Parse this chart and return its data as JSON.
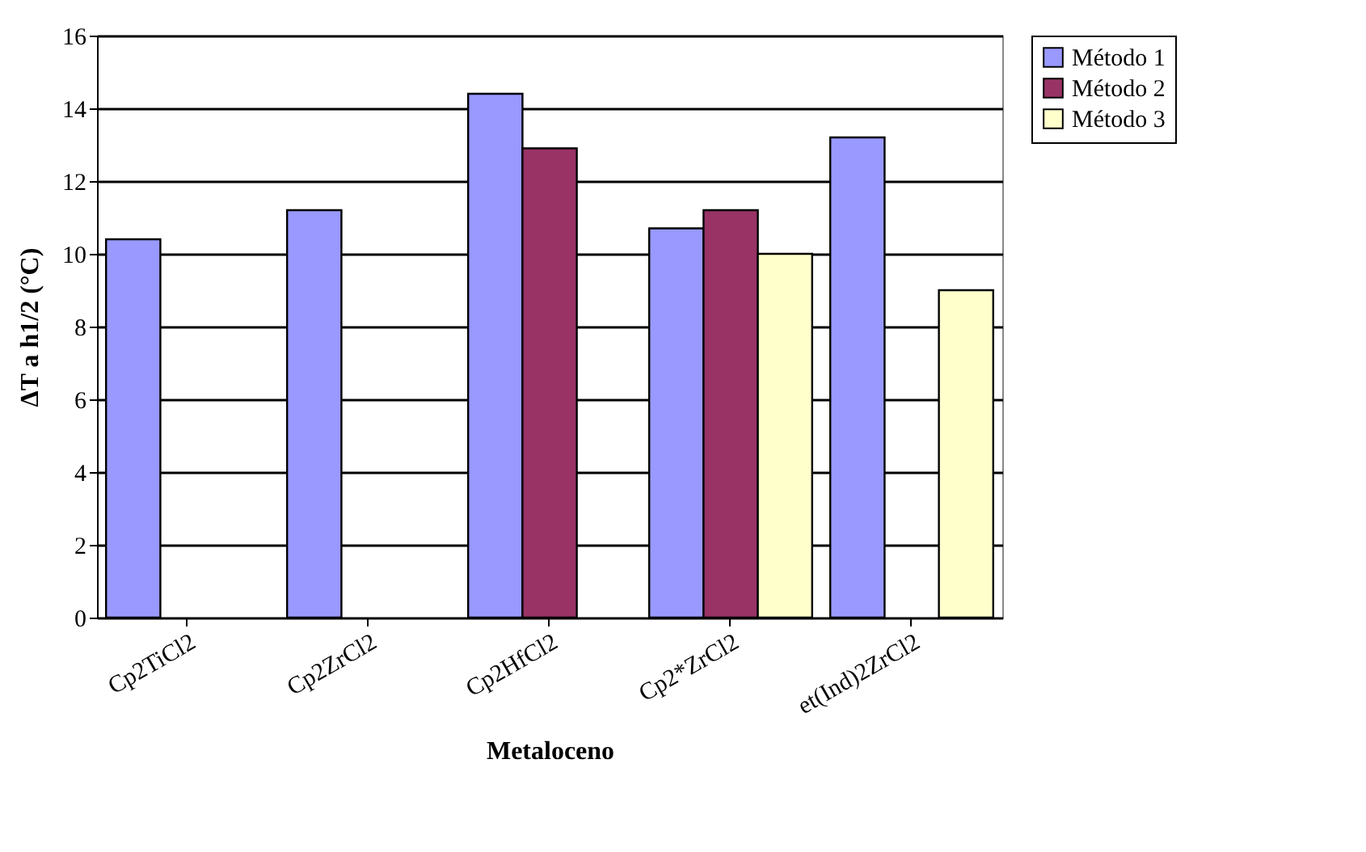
{
  "chart_data": {
    "type": "bar",
    "xlabel": "Metaloceno",
    "ylabel": "ΔT a h1/2 (°C)",
    "categories": [
      "Cp2TiCl2",
      "Cp2ZrCl2",
      "Cp2HfCl2",
      "Cp2*ZrCl2",
      "et(Ind)2ZrCl2"
    ],
    "series": [
      {
        "name": "Método 1",
        "color": "#9999ff",
        "values": [
          10.4,
          11.2,
          14.4,
          10.7,
          13.2
        ]
      },
      {
        "name": "Método 2",
        "color": "#993366",
        "values": [
          null,
          null,
          12.9,
          11.2,
          null
        ]
      },
      {
        "name": "Método 3",
        "color": "#ffffcc",
        "values": [
          null,
          null,
          null,
          10.0,
          9.0
        ]
      }
    ],
    "ylim": [
      0,
      16
    ],
    "yticks": [
      0,
      2,
      4,
      6,
      8,
      10,
      12,
      14,
      16
    ],
    "grid": "y",
    "legend": "right"
  }
}
